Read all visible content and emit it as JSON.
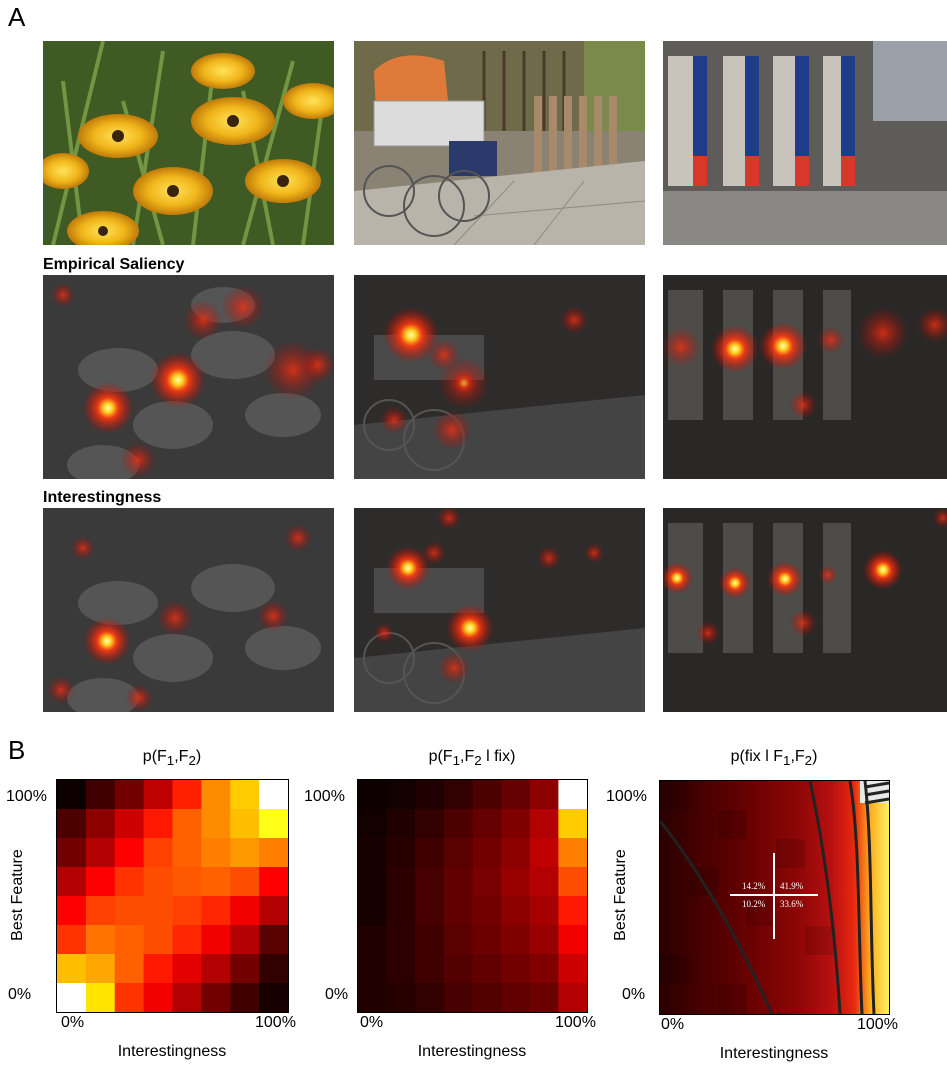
{
  "panelA": {
    "letter": "A",
    "row_labels": {
      "empirical": "Empirical Saliency",
      "interest": "Interestingness"
    },
    "scenes": [
      "flowers",
      "pram",
      "pillars"
    ]
  },
  "panelB": {
    "letter": "B",
    "plots": [
      {
        "title_base": "p(F",
        "title_sub1": "1",
        "title_mid": ",F",
        "title_sub2": "2",
        "title_end": ")",
        "ylabel": "Best Feature",
        "xlabel": "Interestingness",
        "x_ticks": [
          "0%",
          "100%"
        ],
        "y_ticks": [
          "100%",
          "0%"
        ]
      },
      {
        "title_base": "p(F",
        "title_sub1": "1",
        "title_mid": ",F",
        "title_sub2": "2",
        "title_end": " l fix)",
        "ylabel": "",
        "xlabel": "Interestingness",
        "x_ticks": [
          "0%",
          "100%"
        ],
        "y_ticks": [
          "100%",
          "0%"
        ]
      },
      {
        "title_base": "p(fix l F",
        "title_sub1": "1",
        "title_mid": ",F",
        "title_sub2": "2",
        "title_end": ")",
        "ylabel": "Best Feature",
        "xlabel": "Interestingness",
        "x_ticks": [
          "0%",
          "100%"
        ],
        "y_ticks": [
          "100%",
          "0%"
        ],
        "quadrants": {
          "top_left": "14.2%",
          "top_right": "41.9%",
          "bottom_left": "10.2%",
          "bottom_right": "33.6%"
        }
      }
    ]
  },
  "chart_data": [
    {
      "type": "heatmap",
      "title": "p(F1,F2)",
      "xlabel": "Interestingness",
      "ylabel": "Best Feature",
      "x_ticks": [
        "0%",
        "100%"
      ],
      "y_ticks": [
        "0%",
        "100%"
      ],
      "rows_top_to_bottom": [
        [
          0.02,
          0.1,
          0.18,
          0.3,
          0.45,
          0.62,
          0.72,
          1.0
        ],
        [
          0.12,
          0.22,
          0.32,
          0.44,
          0.55,
          0.62,
          0.7,
          0.82
        ],
        [
          0.18,
          0.28,
          0.4,
          0.5,
          0.55,
          0.6,
          0.64,
          0.6
        ],
        [
          0.28,
          0.4,
          0.48,
          0.52,
          0.54,
          0.55,
          0.52,
          0.4
        ],
        [
          0.4,
          0.5,
          0.52,
          0.52,
          0.5,
          0.46,
          0.38,
          0.28
        ],
        [
          0.48,
          0.58,
          0.55,
          0.52,
          0.46,
          0.38,
          0.28,
          0.14
        ],
        [
          0.7,
          0.66,
          0.55,
          0.44,
          0.36,
          0.28,
          0.18,
          0.08
        ],
        [
          1.0,
          0.76,
          0.48,
          0.38,
          0.28,
          0.18,
          0.1,
          0.04
        ]
      ]
    },
    {
      "type": "heatmap",
      "title": "p(F1,F2 l fix)",
      "xlabel": "Interestingness",
      "x_ticks": [
        "0%",
        "100%"
      ],
      "y_ticks": [
        "0%",
        "100%"
      ],
      "rows_top_to_bottom": [
        [
          0.02,
          0.03,
          0.05,
          0.08,
          0.12,
          0.16,
          0.22,
          1.0
        ],
        [
          0.03,
          0.05,
          0.08,
          0.12,
          0.16,
          0.2,
          0.28,
          0.72
        ],
        [
          0.04,
          0.06,
          0.1,
          0.14,
          0.18,
          0.22,
          0.3,
          0.6
        ],
        [
          0.04,
          0.07,
          0.11,
          0.15,
          0.19,
          0.24,
          0.28,
          0.52
        ],
        [
          0.04,
          0.07,
          0.11,
          0.15,
          0.18,
          0.22,
          0.26,
          0.44
        ],
        [
          0.05,
          0.07,
          0.1,
          0.14,
          0.17,
          0.2,
          0.24,
          0.38
        ],
        [
          0.05,
          0.07,
          0.1,
          0.13,
          0.15,
          0.18,
          0.2,
          0.32
        ],
        [
          0.05,
          0.06,
          0.08,
          0.11,
          0.13,
          0.15,
          0.17,
          0.28
        ]
      ]
    },
    {
      "type": "heatmap",
      "title": "p(fix l F1,F2)",
      "xlabel": "Interestingness",
      "ylabel": "Best Feature",
      "x_ticks": [
        "0%",
        "100%"
      ],
      "y_ticks": [
        "0%",
        "100%"
      ],
      "quadrant_values": {
        "top_left": "14.2%",
        "top_right": "41.9%",
        "bottom_left": "10.2%",
        "bottom_right": "33.6%"
      }
    }
  ]
}
